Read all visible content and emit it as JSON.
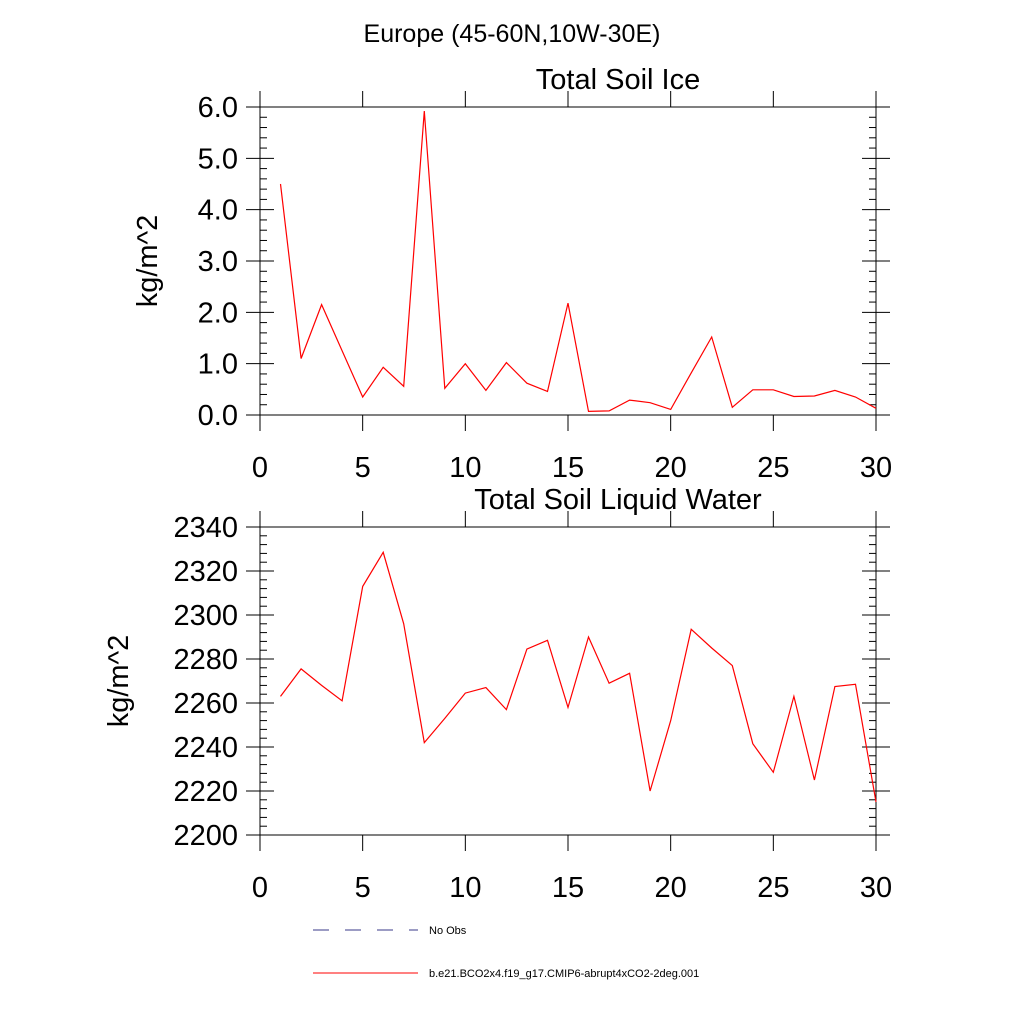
{
  "figure": {
    "suptitle": "Europe (45-60N,10W-30E)",
    "line_color": "#ff0000",
    "axis_color": "#000000"
  },
  "chart_data": [
    {
      "type": "line",
      "title": "Total Soil Ice",
      "ylabel": "kg/m^2",
      "xlabel": "",
      "xlim": [
        0,
        30
      ],
      "ylim": [
        0.0,
        6.0
      ],
      "x_ticks": [
        "0",
        "5",
        "10",
        "15",
        "20",
        "25",
        "30"
      ],
      "y_ticks": [
        "0.0",
        "1.0",
        "2.0",
        "3.0",
        "4.0",
        "5.0",
        "6.0"
      ],
      "series": [
        {
          "name": "b.e21.BCO2x4.f19_g17.CMIP6-abrupt4xCO2-2deg.001",
          "color": "#ff0000",
          "x": [
            1,
            2,
            3,
            4,
            5,
            6,
            7,
            8,
            9,
            10,
            11,
            12,
            13,
            14,
            15,
            16,
            17,
            18,
            19,
            20,
            21,
            22,
            23,
            24,
            25,
            26,
            27,
            28,
            29,
            30
          ],
          "values": [
            4.5,
            1.1,
            2.15,
            1.25,
            0.35,
            0.93,
            0.56,
            5.92,
            0.52,
            1.0,
            0.48,
            1.02,
            0.62,
            0.46,
            2.18,
            0.07,
            0.08,
            0.29,
            0.24,
            0.11,
            0.82,
            1.52,
            0.15,
            0.49,
            0.49,
            0.36,
            0.37,
            0.48,
            0.35,
            0.13
          ]
        }
      ]
    },
    {
      "type": "line",
      "title": "Total Soil Liquid Water",
      "ylabel": "kg/m^2",
      "xlabel": "",
      "xlim": [
        0,
        30
      ],
      "ylim": [
        2200,
        2340
      ],
      "x_ticks": [
        "0",
        "5",
        "10",
        "15",
        "20",
        "25",
        "30"
      ],
      "y_ticks": [
        "2200",
        "2220",
        "2240",
        "2260",
        "2280",
        "2300",
        "2320",
        "2340"
      ],
      "series": [
        {
          "name": "b.e21.BCO2x4.f19_g17.CMIP6-abrupt4xCO2-2deg.001",
          "color": "#ff0000",
          "x": [
            1,
            2,
            3,
            4,
            5,
            6,
            7,
            8,
            9,
            10,
            11,
            12,
            13,
            14,
            15,
            16,
            17,
            18,
            19,
            20,
            21,
            22,
            23,
            24,
            25,
            26,
            27,
            28,
            29,
            30
          ],
          "values": [
            2263,
            2275.5,
            2268,
            2261,
            2313,
            2328.5,
            2296,
            2242,
            2253,
            2264.5,
            2267,
            2257,
            2284.5,
            2288.5,
            2258,
            2290,
            2269,
            2273.5,
            2220,
            2252,
            2293.5,
            2285,
            2277,
            2241.5,
            2228.5,
            2263,
            2225,
            2267.5,
            2268.5,
            2215
          ]
        }
      ]
    }
  ],
  "legend": {
    "items": [
      {
        "label": "No Obs",
        "style": "dashed",
        "color": "#3a3a8a"
      },
      {
        "label": "b.e21.BCO2x4.f19_g17.CMIP6-abrupt4xCO2-2deg.001",
        "style": "solid",
        "color": "#ff0000"
      }
    ]
  }
}
